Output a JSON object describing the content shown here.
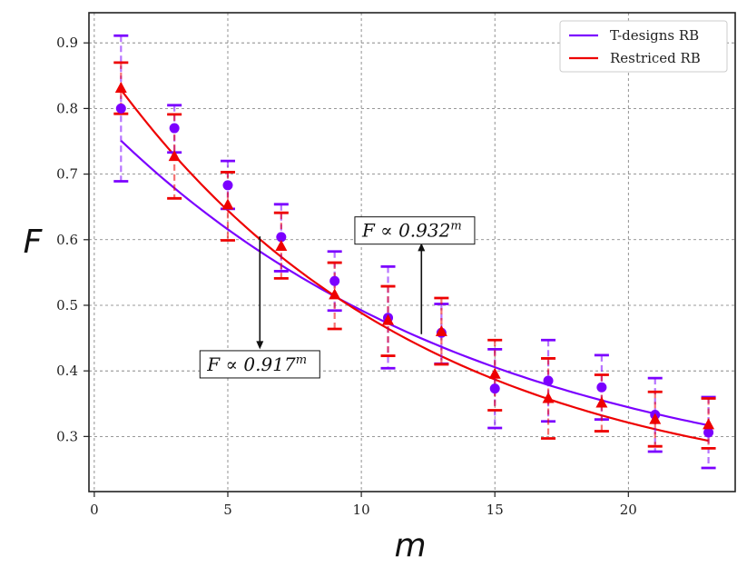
{
  "chart_data": {
    "type": "scatter",
    "xlabel": "m",
    "ylabel": "F",
    "xlim": [
      -0.2,
      24.0
    ],
    "ylim": [
      0.216,
      0.946
    ],
    "xticks": [
      0,
      5,
      10,
      15,
      20
    ],
    "yticks": [
      0.3,
      0.4,
      0.5,
      0.6,
      0.7,
      0.8,
      0.9
    ],
    "ytick_labels": [
      "0.3",
      "0.4",
      "0.5",
      "0.6",
      "0.7",
      "0.8",
      "0.9"
    ],
    "grid": true,
    "legend_position": "top-right",
    "series": [
      {
        "name": "T-designs RB",
        "color": "#7b00ff",
        "marker": "circle",
        "x": [
          1,
          3,
          5,
          7,
          9,
          11,
          13,
          15,
          17,
          19,
          21,
          23
        ],
        "y": [
          0.8,
          0.77,
          0.683,
          0.604,
          0.537,
          0.481,
          0.458,
          0.373,
          0.385,
          0.375,
          0.333,
          0.306
        ],
        "err_low": [
          0.689,
          0.733,
          0.647,
          0.552,
          0.492,
          0.404,
          0.411,
          0.313,
          0.323,
          0.326,
          0.277,
          0.252
        ],
        "err_high": [
          0.911,
          0.805,
          0.72,
          0.654,
          0.582,
          0.559,
          0.502,
          0.433,
          0.447,
          0.424,
          0.389,
          0.36
        ],
        "fit_label": "F ∝ 0.932^m",
        "fit": {
          "A": 0.5912,
          "base": 0.932,
          "B": 0.2
        }
      },
      {
        "name": "Restriced RB",
        "color": "#ee0000",
        "marker": "triangle",
        "x": [
          1,
          3,
          5,
          7,
          9,
          11,
          13,
          15,
          17,
          19,
          21,
          23
        ],
        "y": [
          0.831,
          0.727,
          0.653,
          0.59,
          0.516,
          0.477,
          0.46,
          0.395,
          0.358,
          0.351,
          0.326,
          0.318
        ],
        "err_low": [
          0.792,
          0.663,
          0.599,
          0.541,
          0.464,
          0.423,
          0.41,
          0.34,
          0.297,
          0.308,
          0.285,
          0.282
        ],
        "err_high": [
          0.87,
          0.791,
          0.703,
          0.641,
          0.565,
          0.529,
          0.511,
          0.447,
          0.419,
          0.394,
          0.368,
          0.358
        ],
        "fit_label": "F ∝ 0.917^m",
        "fit": {
          "A": 0.6856,
          "base": 0.917,
          "B": 0.2
        }
      }
    ],
    "annotations": [
      {
        "text_base": "F ∝ 0.932",
        "sup": "m",
        "x": 12.0,
        "y": 0.614,
        "arrow_from_y": 0.595,
        "arrow_to_y": 0.456,
        "arrow_x": 12.25,
        "arrow_direction": "up"
      },
      {
        "text_base": "F ∝ 0.917",
        "sup": "m",
        "x": 6.2,
        "y": 0.41,
        "arrow_from_y": 0.605,
        "arrow_to_y": 0.433,
        "arrow_x": 6.2,
        "arrow_direction": "down"
      }
    ]
  }
}
